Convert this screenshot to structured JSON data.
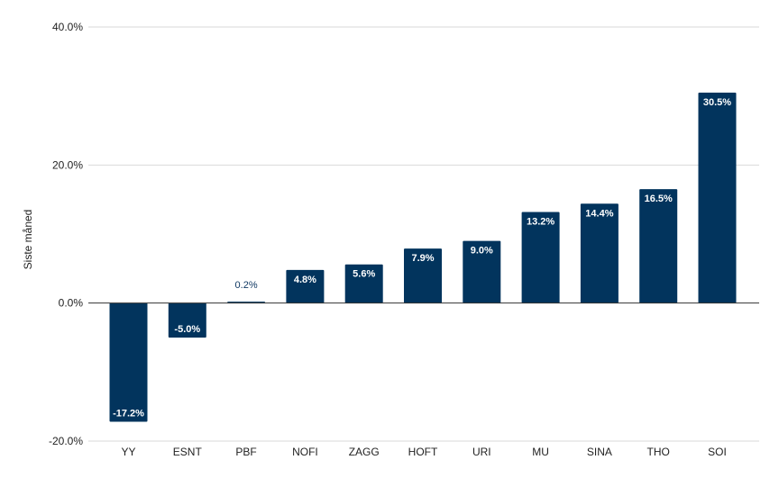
{
  "chart_data": {
    "type": "bar",
    "categories": [
      "YY",
      "ESNT",
      "PBF",
      "NOFI",
      "ZAGG",
      "HOFT",
      "URI",
      "MU",
      "SINA",
      "THO",
      "SOI"
    ],
    "values": [
      -17.2,
      -5.0,
      0.2,
      4.8,
      5.6,
      7.9,
      9.0,
      13.2,
      14.4,
      16.5,
      30.5
    ],
    "data_labels": [
      "-17.2%",
      "-5.0%",
      "0.2%",
      "4.8%",
      "5.6%",
      "7.9%",
      "9.0%",
      "13.2%",
      "14.4%",
      "16.5%",
      "30.5%"
    ],
    "ylabel": "Siste måned",
    "xlabel": "",
    "ylim": [
      -20,
      40
    ],
    "yticks": [
      40,
      20,
      0,
      -20
    ],
    "ytick_labels": [
      "40.0%",
      "20.0%",
      "0.0%",
      "-20.0%"
    ],
    "grid": true,
    "bar_color": "#02345d",
    "grid_color": "#d9d9d9",
    "zero_line_color": "#333333"
  }
}
